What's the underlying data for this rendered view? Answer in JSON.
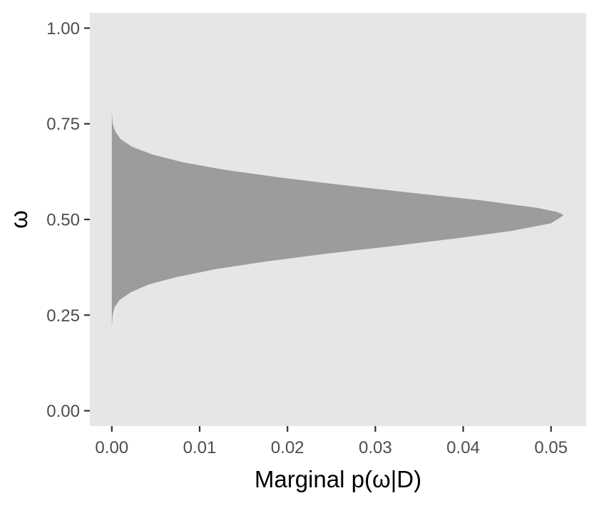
{
  "chart_data": {
    "type": "area",
    "orientation": "horizontal",
    "title": "",
    "xlabel": "Marginal p(ω|D)",
    "ylabel": "ω",
    "xlim": [
      -0.0025,
      0.054
    ],
    "ylim": [
      -0.04,
      1.04
    ],
    "x_ticks": [
      0.0,
      0.01,
      0.02,
      0.03,
      0.04,
      0.05
    ],
    "x_tick_labels": [
      "0.00",
      "0.01",
      "0.02",
      "0.03",
      "0.04",
      "0.05"
    ],
    "y_ticks": [
      0.0,
      0.25,
      0.5,
      0.75,
      1.0
    ],
    "y_tick_labels": [
      "0.00",
      "0.25",
      "0.50",
      "0.75",
      "1.00"
    ],
    "grid": false,
    "background": "#e6e6e6",
    "fill_color": "#9c9c9c",
    "series": [
      {
        "omega": [
          0.2,
          0.22,
          0.25,
          0.27,
          0.29,
          0.31,
          0.33,
          0.35,
          0.37,
          0.39,
          0.41,
          0.43,
          0.45,
          0.47,
          0.49,
          0.51,
          0.515,
          0.52,
          0.53,
          0.55,
          0.57,
          0.59,
          0.61,
          0.63,
          0.65,
          0.67,
          0.69,
          0.71,
          0.73,
          0.75,
          0.78,
          0.82
        ],
        "density": [
          0.0,
          0.0,
          0.0001,
          0.0003,
          0.0009,
          0.0022,
          0.0042,
          0.0075,
          0.0118,
          0.0175,
          0.0242,
          0.0318,
          0.039,
          0.0455,
          0.05,
          0.0514,
          0.0512,
          0.0506,
          0.0485,
          0.042,
          0.034,
          0.0262,
          0.019,
          0.0128,
          0.008,
          0.0046,
          0.0023,
          0.001,
          0.0004,
          0.0001,
          0.0,
          0.0
        ]
      }
    ]
  }
}
